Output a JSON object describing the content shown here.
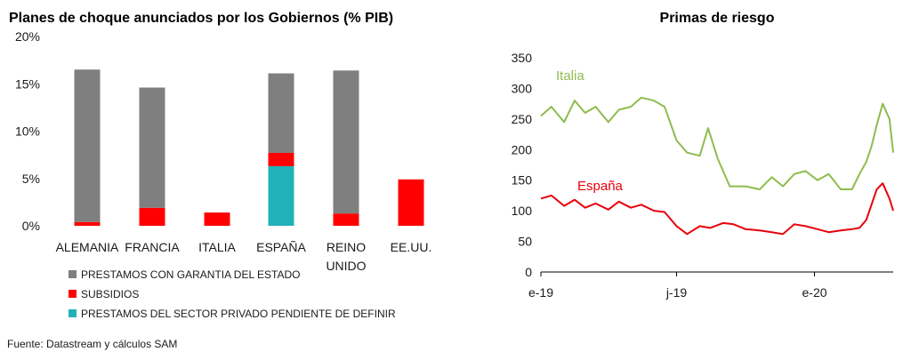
{
  "source": "Fuente:  Datastream y cálculos SAM",
  "colors": {
    "guarantee": "#7f7f7f",
    "subsidy": "#ff0000",
    "private": "#20b2b8",
    "italia": "#8fbc4e",
    "espana": "#e8000b"
  },
  "chart_data": [
    {
      "type": "bar",
      "stacked": true,
      "title": "Planes de choque anunciados por los Gobiernos (% PIB)",
      "categories": [
        "ALEMANIA",
        "FRANCIA",
        "ITALIA",
        "ESPAÑA",
        "REINO UNIDO",
        "EE.UU."
      ],
      "category_lines": [
        [
          "ALEMANIA"
        ],
        [
          "FRANCIA"
        ],
        [
          "ITALIA"
        ],
        [
          "ESPAÑA"
        ],
        [
          "REINO",
          "UNIDO"
        ],
        [
          "EE.UU."
        ]
      ],
      "series": [
        {
          "name": "PRESTAMOS DEL SECTOR PRIVADO PENDIENTE DE DEFINIR",
          "values": [
            0,
            0,
            0,
            6.3,
            0,
            0
          ]
        },
        {
          "name": "SUBSIDIOS",
          "values": [
            0.4,
            1.9,
            1.4,
            1.4,
            1.3,
            4.9
          ]
        },
        {
          "name": "PRESTAMOS CON GARANTIA DEL ESTADO",
          "values": [
            16.1,
            12.7,
            0,
            8.4,
            15.1,
            0
          ]
        }
      ],
      "legend_order": [
        "PRESTAMOS CON GARANTIA DEL ESTADO",
        "SUBSIDIOS",
        "PRESTAMOS DEL SECTOR PRIVADO PENDIENTE DE DEFINIR"
      ],
      "ylim": [
        0,
        20
      ],
      "yticks": [
        "0%",
        "5%",
        "10%",
        "15%",
        "20%"
      ],
      "legend_position": "bottom"
    },
    {
      "type": "line",
      "title": "Primas de riesgo",
      "ylim": [
        0,
        350
      ],
      "yticks": [
        0,
        50,
        100,
        150,
        200,
        250,
        300,
        350
      ],
      "xticks": [
        "e-19",
        "j-19",
        "e-20"
      ],
      "x_range": [
        "2019-01-01",
        "2020-04-15"
      ],
      "series": [
        {
          "name": "Italia",
          "x": [
            "2019-01-01",
            "2019-01-15",
            "2019-02-01",
            "2019-02-15",
            "2019-03-01",
            "2019-03-15",
            "2019-04-01",
            "2019-04-15",
            "2019-05-01",
            "2019-05-15",
            "2019-06-01",
            "2019-06-15",
            "2019-07-01",
            "2019-07-15",
            "2019-08-01",
            "2019-08-12",
            "2019-08-25",
            "2019-09-10",
            "2019-10-01",
            "2019-10-20",
            "2019-11-05",
            "2019-11-20",
            "2019-12-05",
            "2019-12-20",
            "2020-01-05",
            "2020-01-20",
            "2020-02-05",
            "2020-02-20",
            "2020-03-01",
            "2020-03-10",
            "2020-03-17",
            "2020-03-24",
            "2020-04-01",
            "2020-04-10",
            "2020-04-15"
          ],
          "values": [
            255,
            270,
            245,
            280,
            260,
            270,
            245,
            265,
            270,
            285,
            280,
            270,
            215,
            195,
            190,
            235,
            185,
            140,
            140,
            135,
            155,
            140,
            160,
            165,
            150,
            160,
            135,
            135,
            160,
            180,
            205,
            240,
            275,
            250,
            195
          ]
        },
        {
          "name": "España",
          "x": [
            "2019-01-01",
            "2019-01-15",
            "2019-02-01",
            "2019-02-15",
            "2019-03-01",
            "2019-03-15",
            "2019-04-01",
            "2019-04-15",
            "2019-05-01",
            "2019-05-15",
            "2019-06-01",
            "2019-06-15",
            "2019-07-01",
            "2019-07-15",
            "2019-08-01",
            "2019-08-15",
            "2019-09-01",
            "2019-09-15",
            "2019-10-01",
            "2019-10-20",
            "2019-11-05",
            "2019-11-20",
            "2019-12-05",
            "2019-12-20",
            "2020-01-05",
            "2020-01-20",
            "2020-02-05",
            "2020-02-20",
            "2020-03-01",
            "2020-03-10",
            "2020-03-17",
            "2020-03-24",
            "2020-04-01",
            "2020-04-10",
            "2020-04-15"
          ],
          "values": [
            120,
            125,
            108,
            118,
            105,
            112,
            102,
            115,
            105,
            110,
            100,
            98,
            75,
            62,
            75,
            72,
            80,
            78,
            70,
            68,
            65,
            62,
            78,
            75,
            70,
            65,
            68,
            70,
            72,
            85,
            110,
            135,
            145,
            120,
            100
          ]
        }
      ]
    }
  ]
}
